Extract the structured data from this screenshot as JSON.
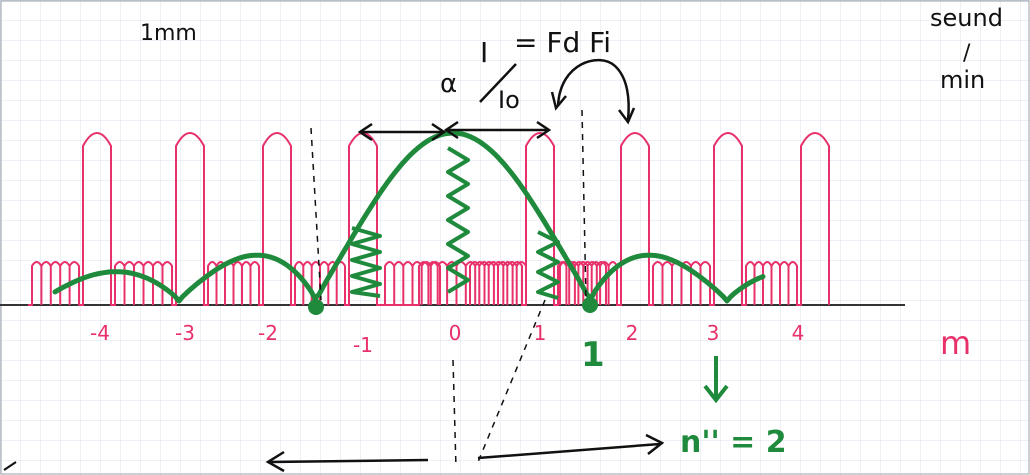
{
  "notes": {
    "scale": "1mm",
    "top_right_line1": "seund",
    "top_right_line2": "min",
    "slash_mark": "/"
  },
  "equation": {
    "alpha": "α",
    "numerator": "I",
    "denominator": "Io",
    "equals_part": "= Fd Fi"
  },
  "axis": {
    "unit": "m",
    "ticks": [
      "-4",
      "-3",
      "-2",
      "-1",
      "0",
      "1",
      "2",
      "3",
      "4"
    ],
    "first_minimum_label": "1",
    "order_label": "n'' = 2"
  },
  "colors": {
    "interference": "#e8316a",
    "envelope": "#1f8a3c",
    "ink": "#111111",
    "grid": "#cfd6e6"
  }
}
